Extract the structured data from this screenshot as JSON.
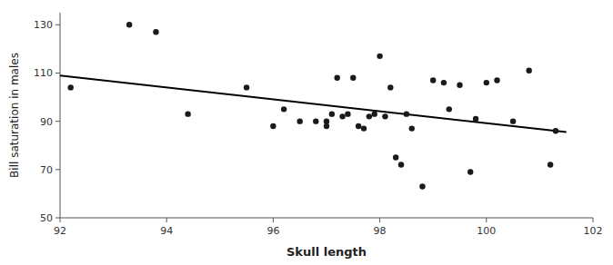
{
  "chart_data": {
    "type": "scatter",
    "xlabel": "Skull length",
    "ylabel": "Bill saturation in males",
    "xlim": [
      92,
      102
    ],
    "ylim": [
      50,
      135
    ],
    "xticks": [
      92,
      94,
      96,
      98,
      100,
      102
    ],
    "yticks": [
      50,
      70,
      90,
      110,
      130
    ],
    "grid": false,
    "series": [
      {
        "type": "scatter",
        "color": "#1a1a1a",
        "marker": "circle",
        "x": [
          92.2,
          93.3,
          93.8,
          94.4,
          95.5,
          96.0,
          96.2,
          96.5,
          96.8,
          97.0,
          97.0,
          97.1,
          97.2,
          97.3,
          97.4,
          97.5,
          97.6,
          97.7,
          97.8,
          97.9,
          98.0,
          98.1,
          98.2,
          98.3,
          98.4,
          98.5,
          98.6,
          98.8,
          99.0,
          99.2,
          99.3,
          99.5,
          99.7,
          99.8,
          100.0,
          100.2,
          100.5,
          100.8,
          101.2,
          101.3
        ],
        "values": [
          104,
          130,
          127,
          93,
          104,
          88,
          95,
          90,
          90,
          88,
          90,
          93,
          108,
          92,
          93,
          108,
          88,
          87,
          92,
          93,
          117,
          92,
          104,
          75,
          72,
          93,
          87,
          63,
          107,
          106,
          95,
          105,
          69,
          91,
          106,
          107,
          90,
          111,
          72,
          86
        ]
      },
      {
        "type": "line",
        "color": "#000000",
        "line_style": "solid",
        "x": [
          92.0,
          101.5
        ],
        "values": [
          109.0,
          85.5
        ]
      }
    ]
  }
}
